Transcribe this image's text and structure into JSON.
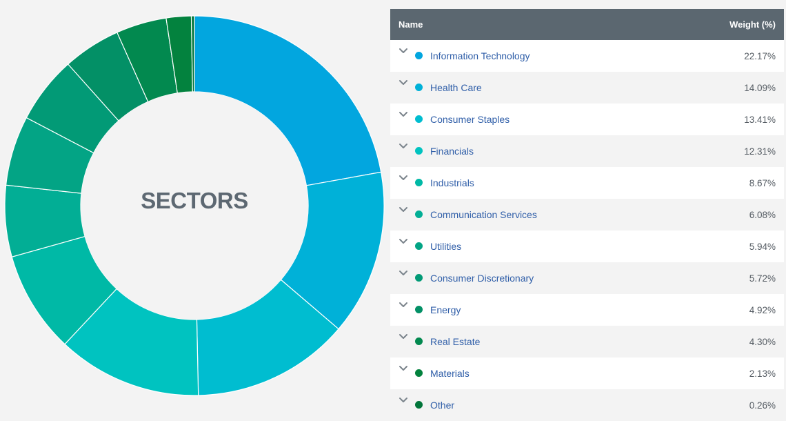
{
  "chart_data": {
    "type": "pie",
    "donut": true,
    "center_label": "SECTORS",
    "categories": [
      "Information Technology",
      "Health Care",
      "Consumer Staples",
      "Financials",
      "Industrials",
      "Communication Services",
      "Utilities",
      "Consumer Discretionary",
      "Energy",
      "Real Estate",
      "Materials",
      "Other"
    ],
    "values": [
      22.17,
      14.09,
      13.41,
      12.31,
      8.67,
      6.08,
      5.94,
      5.72,
      4.92,
      4.3,
      2.13,
      0.26
    ],
    "colors": [
      "#02a6df",
      "#00b1d8",
      "#00bdd0",
      "#00c3c0",
      "#00b9a6",
      "#02ae95",
      "#03a485",
      "#029a76",
      "#039066",
      "#02894f",
      "#03823e",
      "#02753a"
    ]
  },
  "table": {
    "header_name": "Name",
    "header_weight": "Weight (%)",
    "rows": [
      {
        "name": "Information Technology",
        "weight": "22.17%"
      },
      {
        "name": "Health Care",
        "weight": "14.09%"
      },
      {
        "name": "Consumer Staples",
        "weight": "13.41%"
      },
      {
        "name": "Financials",
        "weight": "12.31%"
      },
      {
        "name": "Industrials",
        "weight": "8.67%"
      },
      {
        "name": "Communication Services",
        "weight": "6.08%"
      },
      {
        "name": "Utilities",
        "weight": "5.94%"
      },
      {
        "name": "Consumer Discretionary",
        "weight": "5.72%"
      },
      {
        "name": "Energy",
        "weight": "4.92%"
      },
      {
        "name": "Real Estate",
        "weight": "4.30%"
      },
      {
        "name": "Materials",
        "weight": "2.13%"
      },
      {
        "name": "Other",
        "weight": "0.26%"
      }
    ]
  },
  "icons": {
    "row_toggle": "chevron-down-icon",
    "legend_marker": "color-dot-icon"
  }
}
